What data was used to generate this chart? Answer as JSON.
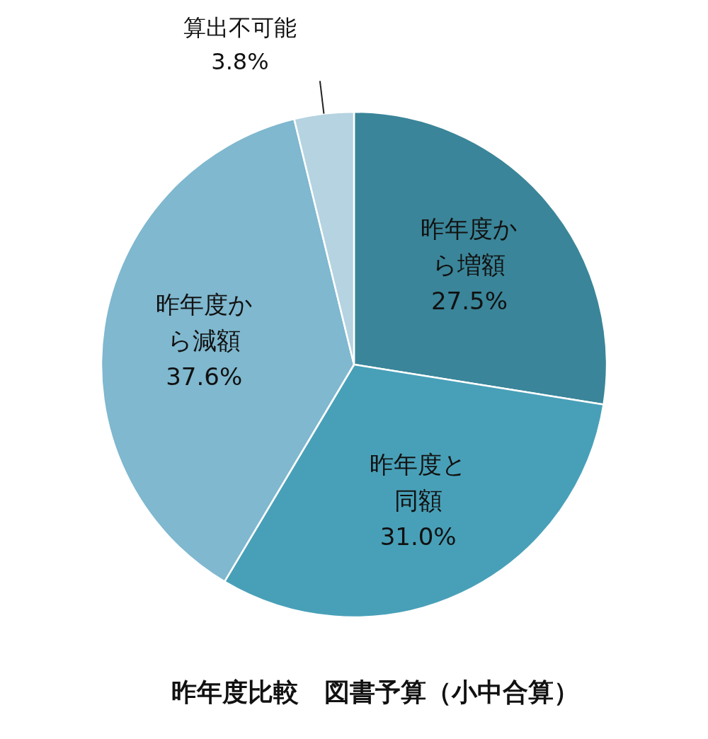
{
  "chart_data": {
    "type": "pie",
    "title": "昨年度比較　図書予算（小中合算）",
    "categories": [
      "昨年度から増額",
      "昨年度と同額",
      "昨年度から減額",
      "算出不可能"
    ],
    "values": [
      27.5,
      31.0,
      37.6,
      3.8
    ],
    "colors": [
      "#3a8599",
      "#48a0b8",
      "#7fb8cf",
      "#b5d3e0"
    ],
    "value_labels": [
      "27.5%",
      "31.0%",
      "37.6%",
      "3.8%"
    ]
  }
}
